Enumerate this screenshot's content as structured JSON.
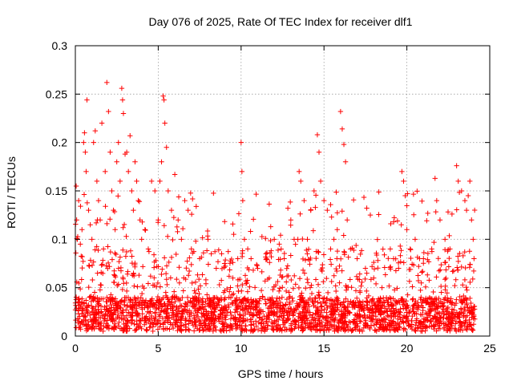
{
  "chart_data": {
    "type": "scatter",
    "title": "Day 076 of 2025, Rate Of TEC Index for receiver dlf1",
    "xlabel": "GPS time / hours",
    "ylabel": "ROTI / TECUs",
    "xlim": [
      0,
      25
    ],
    "ylim": [
      0,
      0.3
    ],
    "x_ticks": [
      0,
      5,
      10,
      15,
      20,
      25
    ],
    "x_tick_labels": [
      "0",
      "5",
      "10",
      "15",
      "20",
      "25"
    ],
    "y_ticks": [
      0,
      0.05,
      0.1,
      0.15,
      0.2,
      0.25,
      0.3
    ],
    "y_tick_labels": [
      "0",
      "0.05",
      "0.1",
      "0.15",
      "0.2",
      "0.25",
      "0.3"
    ],
    "grid": true,
    "marker": "+",
    "color": "#ff0000",
    "baseline_band": [
      0.005,
      0.04
    ],
    "points": [
      [
        0.05,
        0.155
      ],
      [
        0.08,
        0.12
      ],
      [
        0.12,
        0.1
      ],
      [
        0.2,
        0.14
      ],
      [
        0.3,
        0.095
      ],
      [
        0.4,
        0.11
      ],
      [
        0.5,
        0.2
      ],
      [
        0.55,
        0.21
      ],
      [
        0.6,
        0.19
      ],
      [
        0.65,
        0.17
      ],
      [
        0.7,
        0.244
      ],
      [
        0.8,
        0.13
      ],
      [
        0.9,
        0.115
      ],
      [
        1.0,
        0.1
      ],
      [
        1.1,
        0.2
      ],
      [
        1.2,
        0.212
      ],
      [
        1.3,
        0.16
      ],
      [
        1.4,
        0.14
      ],
      [
        1.5,
        0.12
      ],
      [
        1.6,
        0.22
      ],
      [
        1.7,
        0.09
      ],
      [
        1.8,
        0.17
      ],
      [
        1.9,
        0.262
      ],
      [
        2.0,
        0.232
      ],
      [
        2.1,
        0.19
      ],
      [
        2.2,
        0.15
      ],
      [
        2.3,
        0.13
      ],
      [
        2.4,
        0.11
      ],
      [
        2.5,
        0.18
      ],
      [
        2.6,
        0.2
      ],
      [
        2.7,
        0.16
      ],
      [
        2.8,
        0.256
      ],
      [
        2.85,
        0.244
      ],
      [
        2.9,
        0.23
      ],
      [
        3.0,
        0.188
      ],
      [
        3.1,
        0.19
      ],
      [
        3.2,
        0.17
      ],
      [
        3.3,
        0.207
      ],
      [
        3.4,
        0.15
      ],
      [
        3.5,
        0.13
      ],
      [
        3.6,
        0.18
      ],
      [
        3.7,
        0.16
      ],
      [
        3.8,
        0.14
      ],
      [
        3.9,
        0.12
      ],
      [
        4.0,
        0.1
      ],
      [
        4.2,
        0.11
      ],
      [
        4.4,
        0.09
      ],
      [
        4.6,
        0.16
      ],
      [
        4.8,
        0.15
      ],
      [
        5.0,
        0.12
      ],
      [
        5.1,
        0.16
      ],
      [
        5.2,
        0.18
      ],
      [
        5.3,
        0.248
      ],
      [
        5.35,
        0.244
      ],
      [
        5.4,
        0.22
      ],
      [
        5.5,
        0.195
      ],
      [
        5.6,
        0.15
      ],
      [
        5.8,
        0.13
      ],
      [
        6.0,
        0.167
      ],
      [
        6.2,
        0.12
      ],
      [
        6.4,
        0.1
      ],
      [
        6.6,
        0.14
      ],
      [
        6.8,
        0.13
      ],
      [
        7.0,
        0.09
      ],
      [
        7.5,
        0.08
      ],
      [
        8.0,
        0.1
      ],
      [
        8.2,
        0.085
      ],
      [
        8.5,
        0.07
      ],
      [
        9.0,
        0.075
      ],
      [
        9.5,
        0.06
      ],
      [
        9.8,
        0.08
      ],
      [
        10.0,
        0.2
      ],
      [
        10.05,
        0.17
      ],
      [
        10.1,
        0.14
      ],
      [
        10.2,
        0.1
      ],
      [
        10.4,
        0.09
      ],
      [
        10.6,
        0.08
      ],
      [
        11.0,
        0.07
      ],
      [
        11.5,
        0.085
      ],
      [
        11.7,
        0.06
      ],
      [
        12.0,
        0.1
      ],
      [
        12.3,
        0.095
      ],
      [
        12.6,
        0.08
      ],
      [
        13.0,
        0.12
      ],
      [
        13.2,
        0.1
      ],
      [
        13.5,
        0.17
      ],
      [
        13.6,
        0.16
      ],
      [
        13.8,
        0.14
      ],
      [
        14.0,
        0.1
      ],
      [
        14.2,
        0.13
      ],
      [
        14.4,
        0.15
      ],
      [
        14.6,
        0.208
      ],
      [
        14.7,
        0.19
      ],
      [
        14.8,
        0.16
      ],
      [
        15.0,
        0.14
      ],
      [
        15.2,
        0.13
      ],
      [
        15.4,
        0.09
      ],
      [
        15.6,
        0.1
      ],
      [
        15.8,
        0.11
      ],
      [
        16.0,
        0.232
      ],
      [
        16.1,
        0.214
      ],
      [
        16.2,
        0.198
      ],
      [
        16.3,
        0.18
      ],
      [
        16.4,
        0.12
      ],
      [
        16.6,
        0.09
      ],
      [
        17.0,
        0.08
      ],
      [
        17.5,
        0.07
      ],
      [
        18.0,
        0.06
      ],
      [
        18.5,
        0.05
      ],
      [
        19.0,
        0.09
      ],
      [
        19.2,
        0.08
      ],
      [
        19.5,
        0.07
      ],
      [
        19.7,
        0.17
      ],
      [
        19.8,
        0.16
      ],
      [
        19.9,
        0.145
      ],
      [
        20.0,
        0.11
      ],
      [
        20.2,
        0.09
      ],
      [
        20.5,
        0.1
      ],
      [
        21.0,
        0.08
      ],
      [
        21.5,
        0.09
      ],
      [
        21.7,
        0.163
      ],
      [
        21.8,
        0.14
      ],
      [
        22.0,
        0.12
      ],
      [
        22.3,
        0.1
      ],
      [
        22.6,
        0.09
      ],
      [
        23.0,
        0.176
      ],
      [
        23.1,
        0.16
      ],
      [
        23.3,
        0.15
      ],
      [
        23.5,
        0.14
      ],
      [
        23.6,
        0.13
      ],
      [
        23.7,
        0.145
      ],
      [
        23.8,
        0.16
      ],
      [
        23.9,
        0.12
      ],
      [
        24.0,
        0.1
      ],
      [
        24.05,
        0.08
      ]
    ]
  }
}
